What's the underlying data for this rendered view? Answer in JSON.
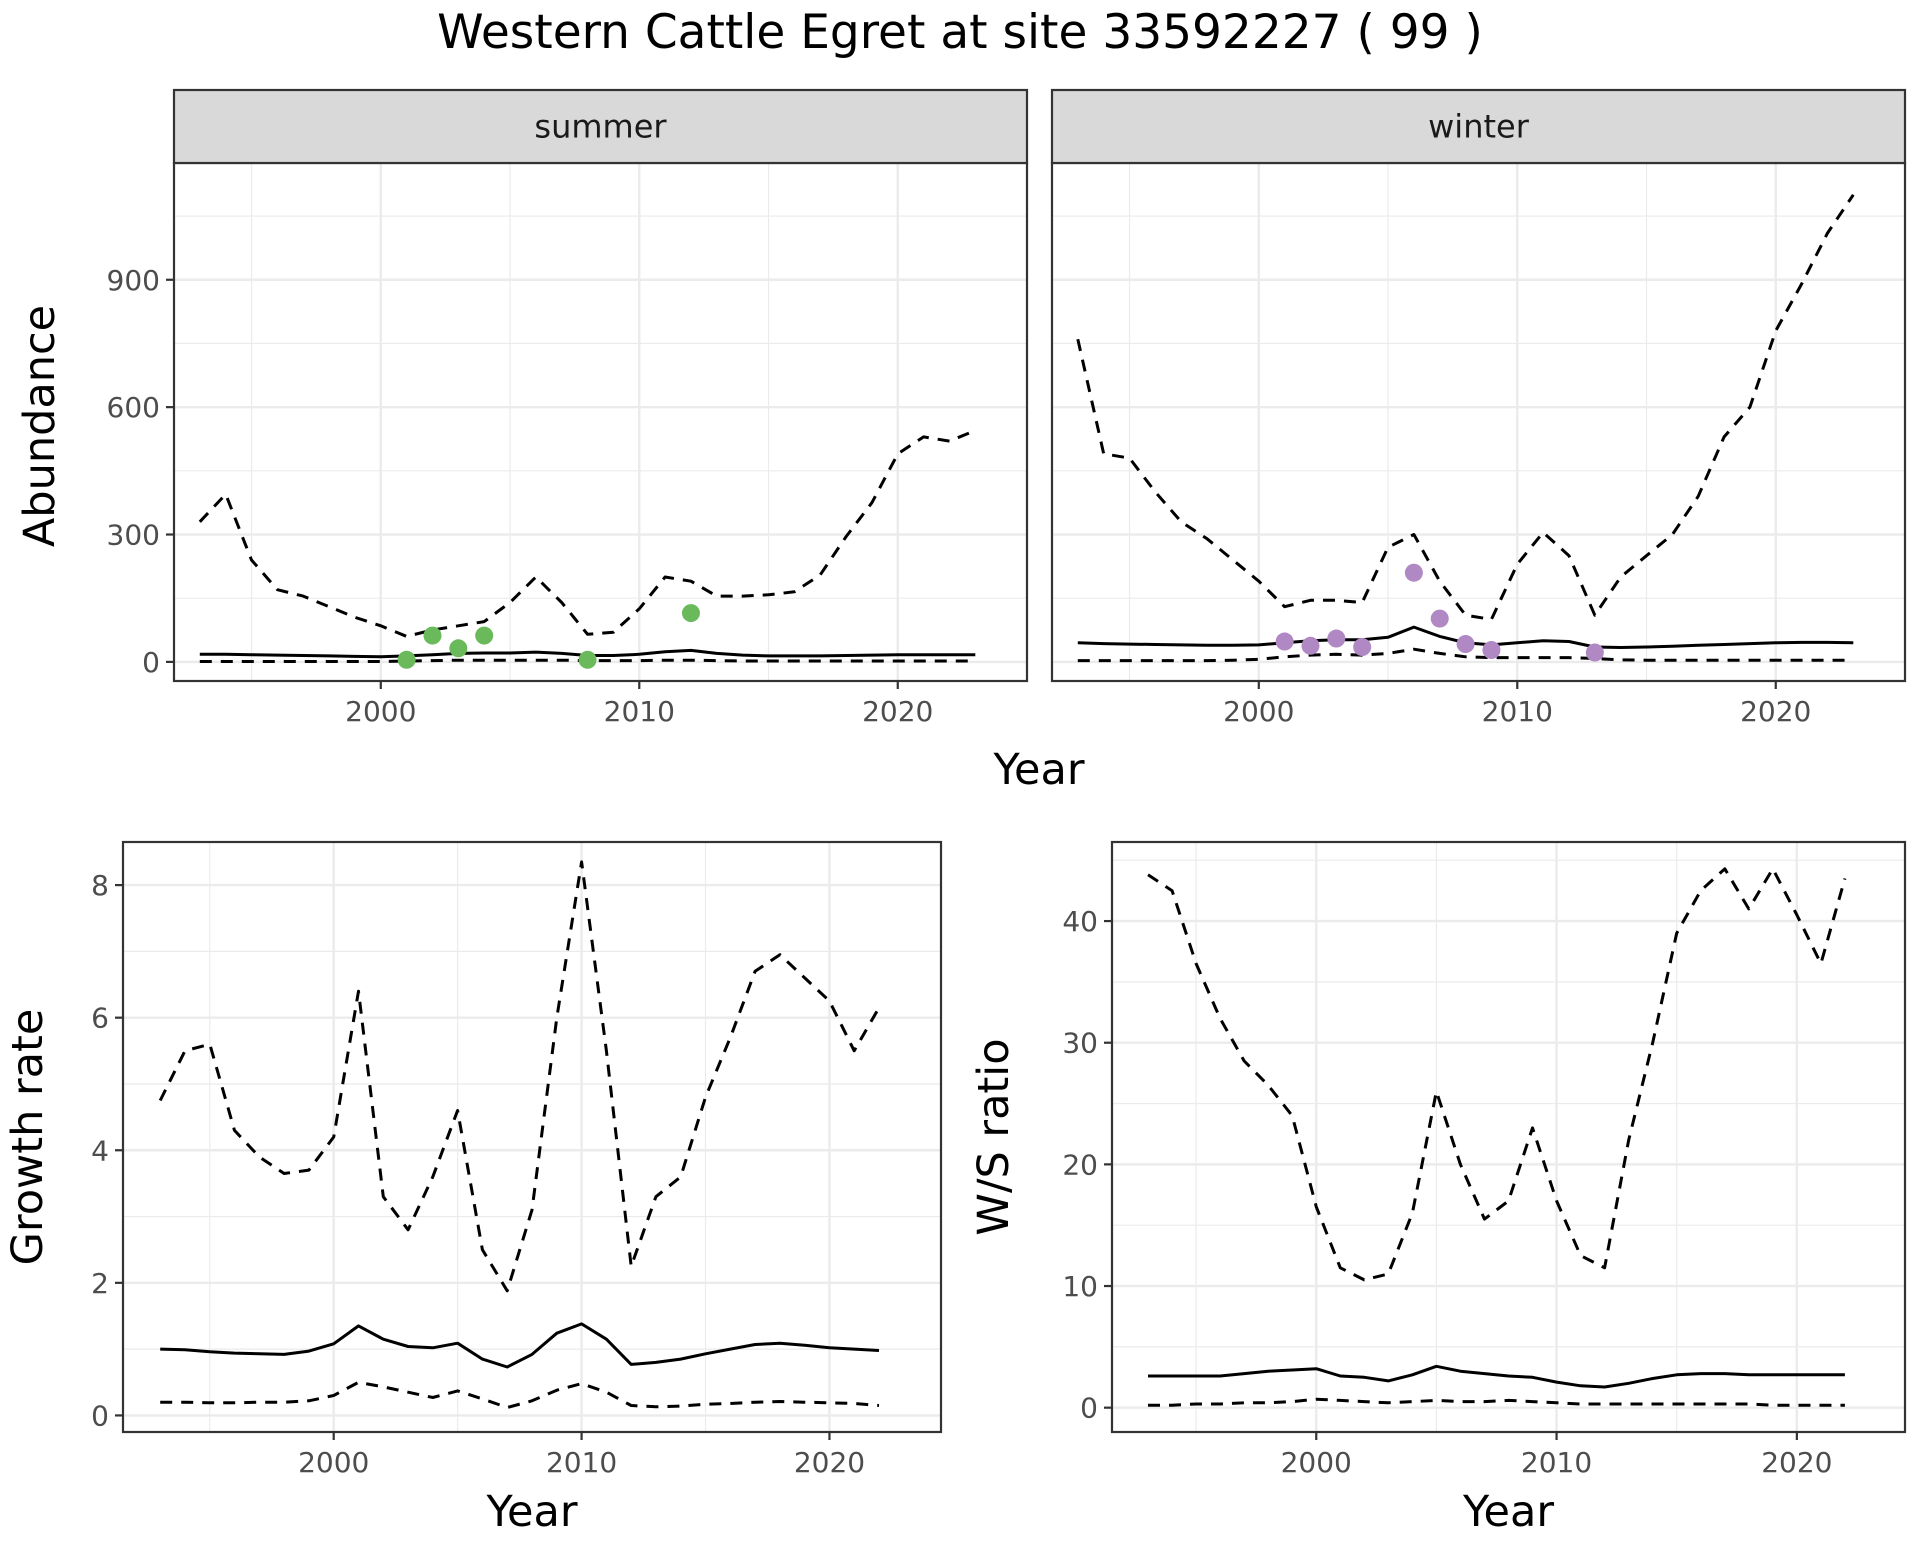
{
  "title": "Western Cattle Egret at site 33592227 ( 99 )",
  "colors": {
    "summer_points": "#6aba5c",
    "winter_points": "#b088c4",
    "lines": "#000000",
    "strip_bg": "#d9d9d9",
    "grid": "#ebebeb"
  },
  "chart_data": [
    {
      "type": "line",
      "facet": "summer",
      "xlabel": "Year",
      "ylabel": "Abundance",
      "xlim": [
        1992,
        2025
      ],
      "ylim": [
        -45,
        1175
      ],
      "xticks": [
        2000,
        2010,
        2020
      ],
      "yticks": [
        0,
        300,
        600,
        900
      ],
      "x": [
        1993,
        1994,
        1995,
        1996,
        1997,
        1998,
        1999,
        2000,
        2001,
        2002,
        2003,
        2004,
        2005,
        2006,
        2007,
        2008,
        2009,
        2010,
        2011,
        2012,
        2013,
        2014,
        2015,
        2016,
        2017,
        2018,
        2019,
        2020,
        2021,
        2022,
        2023
      ],
      "series": [
        {
          "style": "solid",
          "values": [
            18,
            18,
            17,
            16,
            15,
            14,
            13,
            12,
            14,
            17,
            20,
            21,
            21,
            23,
            20,
            15,
            15,
            18,
            24,
            27,
            20,
            16,
            14,
            14,
            14,
            15,
            16,
            17,
            17,
            17,
            17
          ]
        },
        {
          "style": "dashed",
          "values": [
            330,
            395,
            240,
            170,
            155,
            130,
            105,
            85,
            60,
            75,
            85,
            95,
            140,
            200,
            140,
            65,
            70,
            125,
            200,
            190,
            155,
            155,
            158,
            165,
            205,
            295,
            375,
            490,
            530,
            520,
            545
          ]
        },
        {
          "style": "dashed",
          "values": [
            1,
            1,
            1,
            1,
            1,
            1,
            1,
            1,
            2,
            3,
            4,
            4,
            4,
            4,
            4,
            3,
            3,
            3,
            4,
            4,
            3,
            2,
            2,
            2,
            2,
            2,
            2,
            2,
            2,
            2,
            2
          ]
        }
      ],
      "points": {
        "x": [
          2001,
          2002,
          2003,
          2004,
          2008,
          2012
        ],
        "y": [
          5,
          62,
          32,
          62,
          5,
          115
        ]
      }
    },
    {
      "type": "line",
      "facet": "winter",
      "xlabel": "Year",
      "ylabel": "Abundance",
      "xlim": [
        1992,
        2025
      ],
      "ylim": [
        -45,
        1175
      ],
      "xticks": [
        2000,
        2010,
        2020
      ],
      "yticks": [
        0,
        300,
        600,
        900
      ],
      "x": [
        1993,
        1994,
        1995,
        1996,
        1997,
        1998,
        1999,
        2000,
        2001,
        2002,
        2003,
        2004,
        2005,
        2006,
        2007,
        2008,
        2009,
        2010,
        2011,
        2012,
        2013,
        2014,
        2015,
        2016,
        2017,
        2018,
        2019,
        2020,
        2021,
        2022,
        2023
      ],
      "series": [
        {
          "style": "solid",
          "values": [
            45,
            43,
            42,
            41,
            40,
            39,
            39,
            40,
            45,
            50,
            52,
            52,
            58,
            82,
            60,
            45,
            40,
            45,
            50,
            48,
            35,
            34,
            35,
            37,
            39,
            41,
            43,
            45,
            46,
            46,
            45
          ]
        },
        {
          "style": "dashed",
          "values": [
            760,
            490,
            480,
            400,
            330,
            290,
            240,
            190,
            130,
            145,
            145,
            140,
            270,
            300,
            190,
            110,
            100,
            230,
            305,
            250,
            110,
            200,
            250,
            300,
            390,
            530,
            600,
            780,
            890,
            1010,
            1100
          ]
        },
        {
          "style": "dashed",
          "values": [
            3,
            3,
            3,
            3,
            3,
            3,
            4,
            6,
            12,
            16,
            18,
            16,
            20,
            30,
            20,
            12,
            10,
            10,
            10,
            10,
            8,
            5,
            4,
            4,
            4,
            4,
            4,
            4,
            4,
            4,
            4
          ]
        }
      ],
      "points": {
        "x": [
          2001,
          2002,
          2003,
          2004,
          2006,
          2007,
          2008,
          2009,
          2013
        ],
        "y": [
          48,
          38,
          55,
          35,
          210,
          102,
          42,
          28,
          22
        ]
      }
    },
    {
      "type": "line",
      "xlabel": "Year",
      "ylabel": "Growth rate",
      "xlim": [
        1991.5,
        2024.5
      ],
      "ylim": [
        -0.25,
        8.65
      ],
      "xticks": [
        2000,
        2010,
        2020
      ],
      "yticks": [
        0,
        2,
        4,
        6,
        8
      ],
      "x": [
        1993,
        1994,
        1995,
        1996,
        1997,
        1998,
        1999,
        2000,
        2001,
        2002,
        2003,
        2004,
        2005,
        2006,
        2007,
        2008,
        2009,
        2010,
        2011,
        2012,
        2013,
        2014,
        2015,
        2016,
        2017,
        2018,
        2019,
        2020,
        2021,
        2022
      ],
      "series": [
        {
          "style": "solid",
          "values": [
            1.0,
            0.99,
            0.96,
            0.94,
            0.93,
            0.92,
            0.97,
            1.08,
            1.35,
            1.15,
            1.04,
            1.02,
            1.09,
            0.85,
            0.73,
            0.92,
            1.24,
            1.38,
            1.15,
            0.77,
            0.8,
            0.85,
            0.93,
            1.0,
            1.07,
            1.09,
            1.06,
            1.02,
            1.0,
            0.98
          ]
        },
        {
          "style": "dashed",
          "values": [
            4.75,
            5.5,
            5.6,
            4.3,
            3.9,
            3.65,
            3.7,
            4.2,
            6.4,
            3.3,
            2.8,
            3.6,
            4.6,
            2.5,
            1.88,
            3.1,
            6.0,
            8.35,
            5.5,
            2.25,
            3.3,
            3.6,
            4.8,
            5.7,
            6.7,
            6.95,
            6.6,
            6.25,
            5.5,
            6.15
          ]
        },
        {
          "style": "dashed",
          "values": [
            0.2,
            0.2,
            0.19,
            0.19,
            0.2,
            0.2,
            0.22,
            0.3,
            0.5,
            0.43,
            0.35,
            0.27,
            0.37,
            0.25,
            0.12,
            0.22,
            0.38,
            0.48,
            0.35,
            0.15,
            0.13,
            0.14,
            0.17,
            0.18,
            0.2,
            0.21,
            0.2,
            0.19,
            0.18,
            0.15
          ]
        }
      ]
    },
    {
      "type": "line",
      "xlabel": "Year",
      "ylabel": "W/S ratio",
      "xlim": [
        1991.5,
        2024.5
      ],
      "ylim": [
        -2.0,
        46.5
      ],
      "xticks": [
        2000,
        2010,
        2020
      ],
      "yticks": [
        0,
        10,
        20,
        30,
        40
      ],
      "x": [
        1993,
        1994,
        1995,
        1996,
        1997,
        1998,
        1999,
        2000,
        2001,
        2002,
        2003,
        2004,
        2005,
        2006,
        2007,
        2008,
        2009,
        2010,
        2011,
        2012,
        2013,
        2014,
        2015,
        2016,
        2017,
        2018,
        2019,
        2020,
        2021,
        2022
      ],
      "series": [
        {
          "style": "solid",
          "values": [
            2.6,
            2.6,
            2.6,
            2.6,
            2.8,
            3.0,
            3.1,
            3.2,
            2.6,
            2.5,
            2.2,
            2.7,
            3.4,
            3.0,
            2.8,
            2.6,
            2.5,
            2.1,
            1.8,
            1.7,
            2.0,
            2.4,
            2.7,
            2.8,
            2.8,
            2.7,
            2.7,
            2.7,
            2.7,
            2.7
          ]
        },
        {
          "style": "dashed",
          "values": [
            43.8,
            42.5,
            36.5,
            32.0,
            28.5,
            26.5,
            24.0,
            16.5,
            11.5,
            10.5,
            11.0,
            16.0,
            26.0,
            20.0,
            15.5,
            17.0,
            23.0,
            17.0,
            12.5,
            11.5,
            22.0,
            30.0,
            39.0,
            42.5,
            44.3,
            41.0,
            44.3,
            40.5,
            36.5,
            43.5
          ]
        },
        {
          "style": "dashed",
          "values": [
            0.2,
            0.2,
            0.3,
            0.3,
            0.4,
            0.4,
            0.5,
            0.7,
            0.6,
            0.5,
            0.4,
            0.5,
            0.6,
            0.5,
            0.5,
            0.6,
            0.5,
            0.4,
            0.3,
            0.3,
            0.3,
            0.3,
            0.3,
            0.3,
            0.3,
            0.3,
            0.2,
            0.2,
            0.2,
            0.2
          ]
        }
      ]
    }
  ]
}
